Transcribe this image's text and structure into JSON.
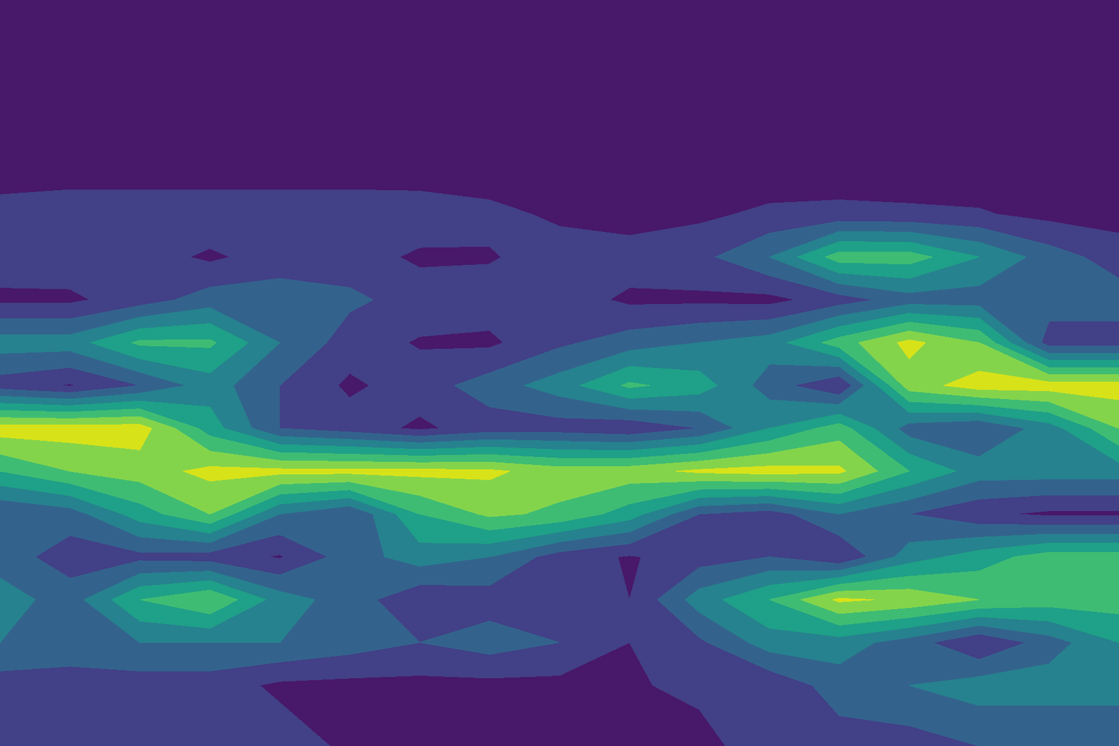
{
  "chart_data": {
    "type": "contour",
    "color": "viridis",
    "tick_labels": false,
    "xlim": [
      0,
      1568
    ],
    "ylim": [
      1045,
      0
    ],
    "levels": [
      0,
      1,
      2,
      3,
      4,
      5,
      6,
      7,
      8
    ],
    "x": [
      0,
      98,
      196,
      294,
      392,
      490,
      588,
      686,
      784,
      882,
      980,
      1078,
      1176,
      1274,
      1372,
      1470,
      1568
    ],
    "y": [
      0,
      80,
      160,
      240,
      300,
      360,
      420,
      480,
      540,
      600,
      660,
      720,
      780,
      840,
      900,
      960,
      1045
    ],
    "z": [
      [
        0.3,
        0.3,
        0.3,
        0.3,
        0.3,
        0.3,
        0.3,
        0.3,
        0.3,
        0.3,
        0.3,
        0.3,
        0.3,
        0.3,
        0.3,
        0.3,
        0.3
      ],
      [
        0.3,
        0.3,
        0.3,
        0.3,
        0.3,
        0.3,
        0.3,
        0.3,
        0.3,
        0.3,
        0.3,
        0.3,
        0.3,
        0.3,
        0.3,
        0.3,
        0.3
      ],
      [
        0.3,
        0.3,
        0.3,
        0.3,
        0.3,
        0.3,
        0.3,
        0.3,
        0.3,
        0.3,
        0.3,
        0.3,
        0.3,
        0.3,
        0.3,
        0.3,
        0.3
      ],
      [
        0.4,
        0.4,
        0.4,
        0.4,
        0.4,
        0.4,
        0.4,
        0.4,
        0.3,
        0.3,
        0.3,
        0.4,
        0.4,
        0.4,
        0.4,
        0.4,
        0.4
      ],
      [
        1.5,
        1.8,
        1.8,
        1.8,
        1.8,
        1.8,
        1.7,
        1.3,
        0.8,
        0.5,
        0.8,
        1.2,
        1.3,
        1.2,
        1.1,
        0.7,
        0.6
      ],
      [
        1.5,
        1.6,
        1.5,
        0.8,
        1.5,
        1.5,
        0.8,
        0.9,
        1.5,
        1.5,
        1.7,
        3.0,
        5.5,
        5.5,
        4.0,
        2.5,
        1.5
      ],
      [
        0.8,
        0.8,
        1.5,
        2.5,
        2.5,
        2.2,
        1.6,
        1.5,
        1.5,
        0.8,
        0.8,
        0.7,
        1.5,
        2.5,
        2.5,
        2.5,
        2.5
      ],
      [
        3.5,
        3.5,
        5.2,
        5.2,
        3.0,
        1.5,
        0.9,
        0.8,
        1.8,
        2.5,
        3.0,
        3.5,
        5.5,
        7.3,
        6.0,
        1.5,
        1.5
      ],
      [
        1.5,
        0.9,
        2.0,
        3.5,
        2.0,
        0.8,
        1.5,
        2.5,
        3.5,
        5.2,
        4.5,
        2.5,
        1.0,
        6.5,
        7.5,
        7.5,
        7.5
      ],
      [
        7.5,
        7.5,
        7.5,
        4.5,
        2.0,
        1.5,
        0.8,
        1.5,
        1.5,
        1.2,
        2.0,
        4.0,
        5.5,
        2.5,
        2.0,
        3.5,
        6.0
      ],
      [
        5.0,
        6.0,
        6.5,
        7.3,
        7.3,
        7.3,
        7.3,
        7.2,
        6.5,
        6.6,
        7.2,
        7.4,
        7.2,
        5.0,
        3.5,
        3.5,
        3.5
      ],
      [
        2.0,
        2.5,
        4.5,
        6.0,
        3.0,
        2.0,
        5.0,
        6.2,
        5.8,
        4.5,
        2.0,
        1.5,
        3.0,
        2.0,
        1.2,
        0.8,
        0.8
      ],
      [
        2.5,
        1.5,
        1.7,
        1.5,
        0.9,
        2.5,
        3.5,
        3.0,
        1.5,
        0.9,
        1.5,
        2.0,
        1.0,
        3.5,
        4.5,
        5.5,
        5.5
      ],
      [
        3.5,
        2.5,
        5.0,
        6.0,
        3.5,
        2.5,
        1.2,
        1.5,
        1.5,
        1.0,
        3.5,
        5.0,
        7.2,
        6.8,
        6.0,
        5.5,
        5.5
      ],
      [
        3.0,
        3.0,
        3.0,
        3.0,
        3.0,
        2.5,
        2.0,
        2.5,
        2.0,
        1.0,
        1.8,
        3.5,
        3.5,
        2.5,
        1.0,
        2.5,
        4.0
      ],
      [
        1.5,
        1.2,
        1.5,
        1.5,
        0.8,
        0.7,
        0.7,
        0.7,
        0.7,
        0.9,
        1.2,
        1.2,
        2.5,
        3.0,
        3.5,
        3.5,
        3.5
      ],
      [
        1.5,
        1.8,
        1.8,
        1.5,
        1.5,
        0.8,
        0.5,
        0.5,
        0.5,
        0.5,
        0.7,
        1.5,
        1.5,
        1.5,
        2.0,
        2.0,
        2.0
      ]
    ]
  }
}
